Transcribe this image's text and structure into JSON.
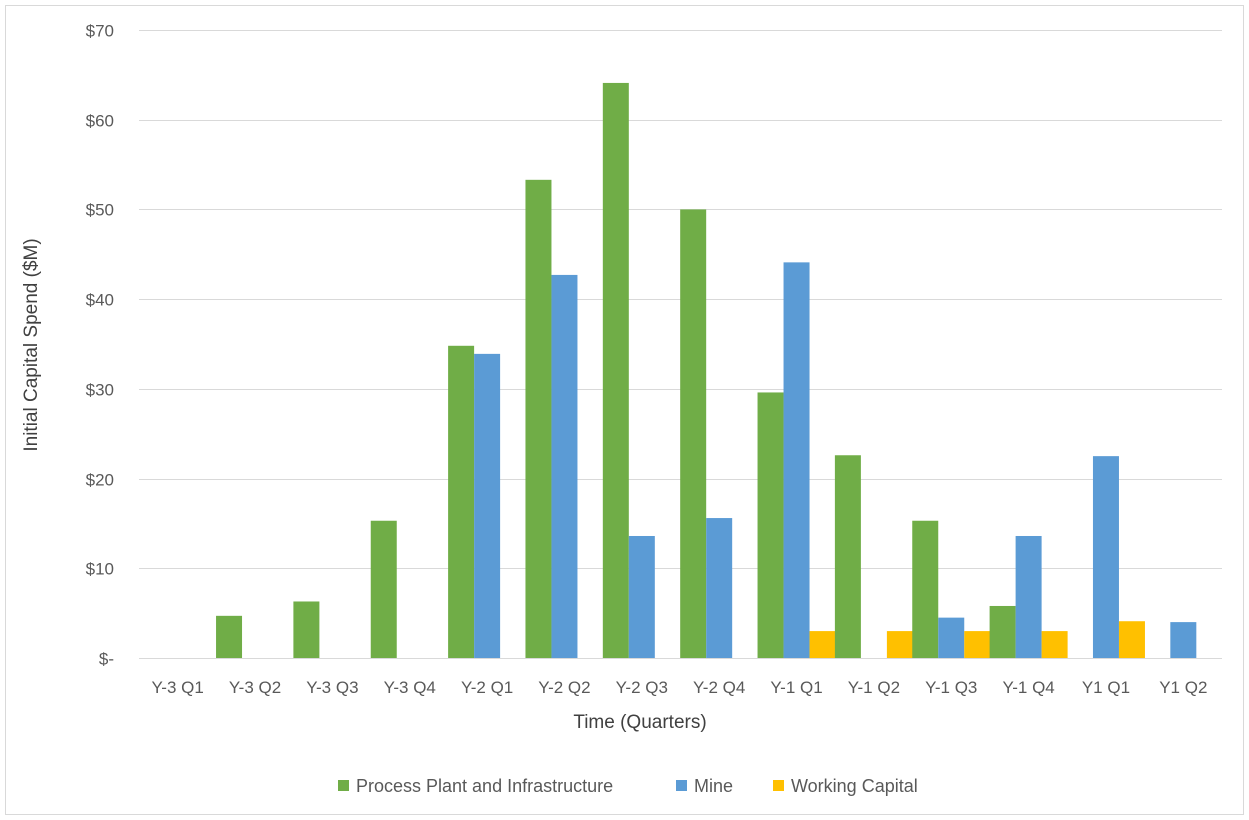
{
  "chart_data": {
    "type": "bar",
    "title": "",
    "xlabel": "Time (Quarters)",
    "ylabel": "Initial Capital Spend ($M)",
    "ylim": [
      0,
      70
    ],
    "yticks": [
      0,
      10,
      20,
      30,
      40,
      50,
      60,
      70
    ],
    "ytick_labels": [
      "$-",
      "$10",
      "$20",
      "$30",
      "$40",
      "$50",
      "$60",
      "$70"
    ],
    "grid": true,
    "legend_position": "bottom",
    "categories": [
      "Y-3 Q1",
      "Y-3 Q2",
      "Y-3 Q3",
      "Y-3 Q4",
      "Y-2 Q1",
      "Y-2 Q2",
      "Y-2 Q3",
      "Y-2 Q4",
      "Y-1 Q1",
      "Y-1 Q2",
      "Y-1 Q3",
      "Y-1 Q4",
      "Y1 Q1",
      "Y1 Q2"
    ],
    "series": [
      {
        "name": "Process Plant and Infrastructure",
        "color": "#70ad47",
        "values": [
          0,
          4.7,
          6.3,
          15.3,
          34.8,
          53.3,
          64.1,
          50.0,
          29.6,
          22.6,
          15.3,
          5.8,
          0,
          0
        ]
      },
      {
        "name": "Mine",
        "color": "#5b9bd5",
        "values": [
          0,
          0,
          0,
          0,
          33.9,
          42.7,
          13.6,
          15.6,
          44.1,
          0,
          4.5,
          13.6,
          22.5,
          4.0
        ]
      },
      {
        "name": "Working Capital",
        "color": "#ffc000",
        "values": [
          0,
          0,
          0,
          0,
          0,
          0,
          0,
          0,
          3.0,
          3.0,
          3.0,
          3.0,
          4.1,
          0
        ]
      }
    ]
  }
}
